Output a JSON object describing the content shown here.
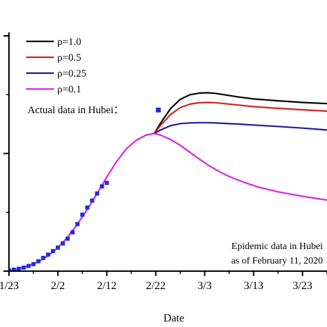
{
  "chart_data": {
    "type": "line",
    "xlabel": "Date",
    "x_ticks": [
      "1/23",
      "2/2",
      "2/12",
      "2/22",
      "3/3",
      "3/13",
      "3/23"
    ],
    "xlim": [
      0,
      65
    ],
    "ylim": [
      0,
      1
    ],
    "series": [
      {
        "name": "ρ=1.0",
        "color": "#000000",
        "x": [
          29.7,
          31,
          33,
          35,
          37,
          39,
          40.5,
          42,
          44,
          47,
          50,
          55,
          60,
          65
        ],
        "y": [
          0.585,
          0.63,
          0.69,
          0.73,
          0.75,
          0.757,
          0.758,
          0.756,
          0.75,
          0.74,
          0.732,
          0.724,
          0.717,
          0.712
        ]
      },
      {
        "name": "ρ=0.5",
        "color": "#d22020",
        "x": [
          29.7,
          31,
          33,
          35,
          37,
          39,
          40.5,
          42,
          44,
          47,
          50,
          55,
          60,
          65
        ],
        "y": [
          0.585,
          0.62,
          0.665,
          0.695,
          0.71,
          0.716,
          0.717,
          0.716,
          0.712,
          0.706,
          0.699,
          0.692,
          0.686,
          0.68
        ]
      },
      {
        "name": "ρ=0.25",
        "color": "#1a1aa0",
        "x": [
          29.7,
          31,
          33,
          35,
          37,
          39,
          40.5,
          42,
          44,
          47,
          50,
          55,
          60,
          65
        ],
        "y": [
          0.585,
          0.6,
          0.618,
          0.627,
          0.63,
          0.631,
          0.631,
          0.63,
          0.628,
          0.625,
          0.621,
          0.615,
          0.608,
          0.6
        ]
      },
      {
        "name": "ρ=0.1",
        "color": "#e020e0",
        "x": [
          0,
          2,
          4,
          6,
          8,
          10,
          12,
          14,
          16,
          18,
          20,
          22,
          24,
          26,
          28,
          29.7,
          31,
          33,
          35,
          37,
          39,
          41,
          43,
          45,
          48,
          51,
          55,
          60,
          65
        ],
        "y": [
          0.0,
          0.01,
          0.022,
          0.04,
          0.065,
          0.1,
          0.145,
          0.2,
          0.262,
          0.33,
          0.4,
          0.466,
          0.52,
          0.556,
          0.578,
          0.585,
          0.578,
          0.56,
          0.535,
          0.505,
          0.475,
          0.447,
          0.423,
          0.402,
          0.378,
          0.357,
          0.337,
          0.318,
          0.302
        ]
      }
    ],
    "actual_data": {
      "name": "Actual data in Hubei：",
      "color": "#1a2ee8",
      "x": [
        0,
        1,
        2,
        3,
        4,
        5,
        6,
        7,
        8,
        9,
        10,
        11,
        12,
        13,
        14,
        15,
        16,
        17,
        18,
        19,
        20
      ],
      "y": [
        0.003,
        0.006,
        0.01,
        0.015,
        0.022,
        0.03,
        0.042,
        0.056,
        0.07,
        0.085,
        0.1,
        0.118,
        0.138,
        0.165,
        0.2,
        0.24,
        0.27,
        0.3,
        0.33,
        0.36,
        0.375
      ]
    },
    "annotation": [
      "Epidemic data in Hubei",
      "as of February 11, 2020"
    ]
  }
}
